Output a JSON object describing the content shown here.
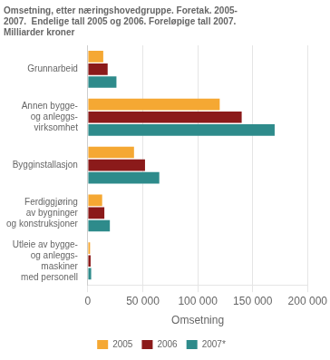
{
  "chart_data": {
    "type": "bar",
    "orientation": "horizontal",
    "title": "Omsetning, etter næringshovedgruppe. Foretak. 2005-\n2007.  Endelige tall 2005 og 2006. Foreløpige tall 2007.\nMilliarder kroner",
    "categories": [
      "Grunnarbeid",
      "Annen bygge-\nog anleggs-\nvirksomhet",
      "Bygginstallasjon",
      "Ferdiggjøring\nav bygninger\nog konstruksjoner",
      "Utleie av bygge-\nog anleggs-\nmaskiner\nmed personell"
    ],
    "series": [
      {
        "name": "2005",
        "color": "#F5A833",
        "values": [
          14000,
          120000,
          42000,
          13000,
          2000
        ]
      },
      {
        "name": "2006",
        "color": "#8B1A1A",
        "values": [
          18000,
          140000,
          52000,
          15000,
          2500
        ]
      },
      {
        "name": "2007*",
        "color": "#2E8B8B",
        "values": [
          26000,
          170000,
          65000,
          20000,
          3000
        ]
      }
    ],
    "xlabel": "Omsetning",
    "xlim": [
      0,
      200000
    ],
    "xticks": [
      0,
      {
        "value": 50000,
        "label": "50 000"
      },
      {
        "value": 100000,
        "label": "100 000"
      },
      {
        "value": 150000,
        "label": "150 000"
      },
      {
        "value": 200000,
        "label": "200 000"
      }
    ],
    "grid": true,
    "legend": "bottom"
  }
}
